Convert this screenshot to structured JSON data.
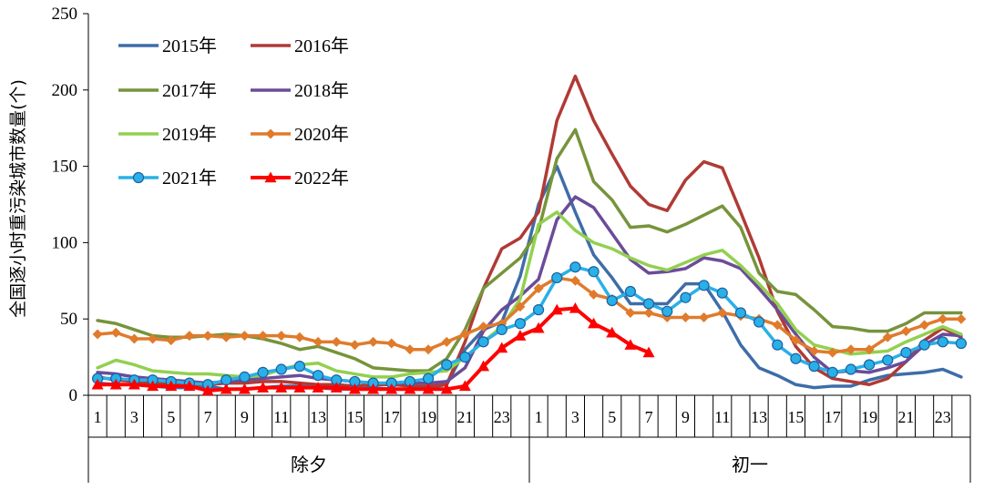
{
  "chart_data": {
    "type": "line",
    "title": "",
    "ylabel": "全国逐小时重污染城市数量(个)",
    "xlabel": "",
    "ylim": [
      0,
      250
    ],
    "yticks": [
      0,
      50,
      100,
      150,
      200,
      250
    ],
    "groups": [
      "除夕",
      "初一"
    ],
    "hour_tick_labels": [
      "1",
      "3",
      "5",
      "7",
      "9",
      "11",
      "13",
      "15",
      "17",
      "19",
      "21",
      "23",
      "1",
      "3",
      "5",
      "7",
      "9",
      "11",
      "13",
      "15",
      "17",
      "19",
      "21",
      "23"
    ],
    "legend_position": "top-left",
    "series": [
      {
        "name": "2015年",
        "color": "#3E6DA8",
        "marker": "none",
        "width": 3.5,
        "values": [
          8,
          7,
          7,
          6,
          5,
          5,
          6,
          4,
          4,
          5,
          6,
          6,
          5,
          4,
          4,
          5,
          4,
          4,
          5,
          7,
          30,
          43,
          48,
          78,
          125,
          150,
          120,
          92,
          77,
          60,
          60,
          60,
          73,
          73,
          55,
          33,
          18,
          13,
          7,
          5,
          6,
          6,
          10,
          13,
          14,
          15,
          17,
          12
        ]
      },
      {
        "name": "2016年",
        "color": "#B03A35",
        "marker": "none",
        "width": 3.5,
        "values": [
          12,
          10,
          9,
          8,
          8,
          7,
          7,
          8,
          8,
          9,
          9,
          8,
          7,
          7,
          6,
          7,
          7,
          6,
          6,
          7,
          35,
          70,
          96,
          103,
          120,
          180,
          209,
          180,
          158,
          137,
          125,
          121,
          141,
          153,
          149,
          120,
          90,
          55,
          32,
          18,
          11,
          9,
          7,
          11,
          22,
          36,
          44,
          38
        ]
      },
      {
        "name": "2017年",
        "color": "#76943C",
        "marker": "none",
        "width": 3.5,
        "values": [
          49,
          47,
          43,
          39,
          38,
          38,
          39,
          40,
          39,
          37,
          34,
          30,
          32,
          28,
          24,
          18,
          17,
          16,
          16,
          24,
          43,
          70,
          80,
          90,
          108,
          155,
          174,
          140,
          128,
          110,
          111,
          107,
          112,
          118,
          124,
          110,
          80,
          68,
          66,
          56,
          45,
          44,
          42,
          42,
          47,
          54,
          54,
          54
        ]
      },
      {
        "name": "2018年",
        "color": "#6B4C98",
        "marker": "none",
        "width": 3.5,
        "values": [
          15,
          14,
          12,
          11,
          10,
          9,
          8,
          9,
          10,
          11,
          12,
          13,
          11,
          10,
          9,
          8,
          8,
          8,
          8,
          9,
          18,
          42,
          56,
          65,
          76,
          115,
          130,
          123,
          106,
          89,
          80,
          81,
          83,
          90,
          88,
          83,
          70,
          56,
          40,
          25,
          15,
          16,
          15,
          18,
          22,
          33,
          40,
          39
        ]
      },
      {
        "name": "2019年",
        "color": "#92D050",
        "marker": "none",
        "width": 3.5,
        "values": [
          18,
          23,
          20,
          16,
          15,
          14,
          14,
          13,
          12,
          13,
          17,
          20,
          21,
          16,
          14,
          12,
          12,
          14,
          15,
          16,
          25,
          35,
          45,
          63,
          112,
          120,
          108,
          100,
          96,
          90,
          85,
          82,
          87,
          92,
          95,
          85,
          73,
          60,
          43,
          33,
          30,
          27,
          28,
          29,
          35,
          40,
          45,
          40
        ]
      },
      {
        "name": "2020年",
        "color": "#E07B2C",
        "marker": "diamond",
        "width": 3.5,
        "values": [
          40,
          41,
          37,
          37,
          36,
          39,
          39,
          38,
          39,
          39,
          39,
          38,
          35,
          35,
          33,
          35,
          34,
          30,
          30,
          35,
          40,
          45,
          47,
          58,
          70,
          77,
          75,
          66,
          63,
          54,
          54,
          51,
          51,
          51,
          54,
          52,
          50,
          46,
          36,
          29,
          28,
          30,
          30,
          38,
          42,
          46,
          50,
          50
        ]
      },
      {
        "name": "2021年",
        "color": "#29B0E8",
        "marker": "circle",
        "width": 3.5,
        "values": [
          11,
          11,
          10,
          10,
          9,
          8,
          7,
          10,
          12,
          15,
          17,
          19,
          13,
          10,
          9,
          8,
          8,
          9,
          11,
          20,
          25,
          35,
          43,
          47,
          56,
          77,
          84,
          81,
          62,
          68,
          60,
          55,
          64,
          72,
          67,
          54,
          48,
          33,
          24,
          19,
          15,
          17,
          20,
          23,
          28,
          33,
          35,
          34
        ]
      },
      {
        "name": "2022年",
        "color": "#FF0000",
        "marker": "triangle",
        "width": 4,
        "values": [
          7,
          7,
          7,
          6,
          6,
          6,
          3,
          4,
          4,
          5,
          5,
          5,
          5,
          5,
          4,
          4,
          4,
          4,
          4,
          4,
          6,
          19,
          31,
          39,
          44,
          56,
          57,
          47,
          41,
          33,
          28
        ]
      }
    ]
  }
}
